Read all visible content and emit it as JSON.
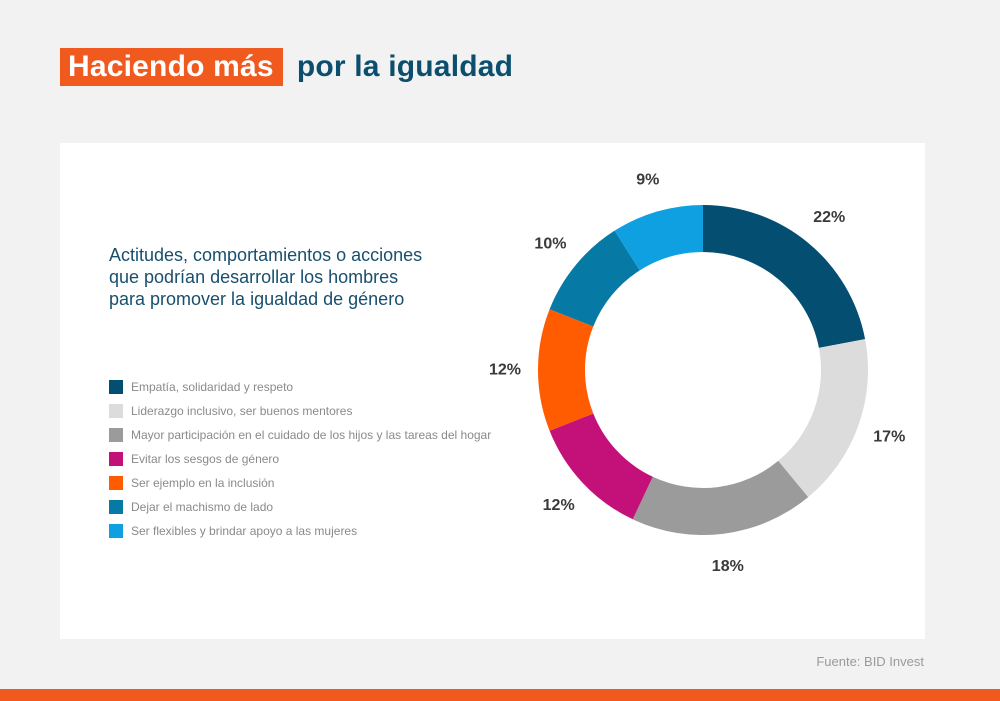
{
  "header": {
    "title_highlight": "Haciendo más",
    "title_rest": "por la igualdad"
  },
  "chart_data": {
    "type": "pie",
    "style": "donut",
    "title": "Actitudes, comportamientos o acciones que podrían desarrollar los hombres para promover la igualdad de género",
    "legend_position": "left",
    "categories": [
      "Empatía, solidaridad y respeto",
      "Liderazgo inclusivo, ser buenos mentores",
      "Mayor participación en el cuidado de los hijos y las tareas del hogar",
      "Evitar los sesgos de género",
      "Ser ejemplo en la inclusión",
      "Dejar el machismo de lado",
      "Ser flexibles y brindar apoyo a las mujeres"
    ],
    "values": [
      22,
      17,
      18,
      12,
      12,
      10,
      9
    ],
    "value_labels": [
      "22%",
      "17%",
      "18%",
      "12%",
      "12%",
      "10%",
      "9%"
    ],
    "colors": [
      "#044e72",
      "#dcdcdc",
      "#9b9b9b",
      "#c4117a",
      "#ff5b00",
      "#067aa4",
      "#0ea0e0"
    ]
  },
  "source": "Fuente: BID Invest",
  "accent_color": "#f05a1e"
}
